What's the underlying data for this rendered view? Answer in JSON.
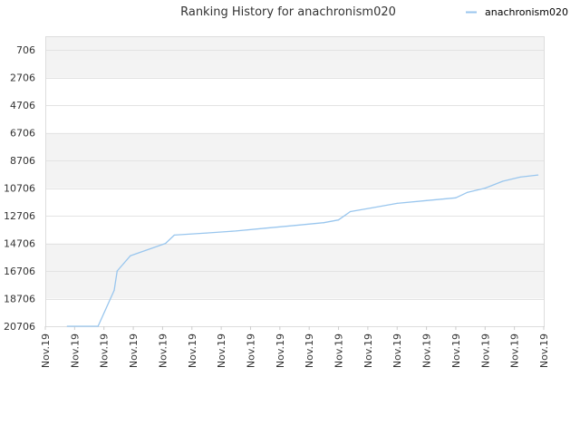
{
  "chart_data": {
    "type": "line",
    "title": "Ranking History for anachronism020",
    "xlabel": "",
    "ylabel": "",
    "y_inverted": true,
    "ylim": [
      706,
      20706
    ],
    "yticks": [
      "706",
      "2706",
      "4706",
      "6706",
      "8706",
      "10706",
      "12706",
      "14706",
      "16706",
      "18706",
      "20706"
    ],
    "xticks": [
      "Nov.19",
      "Nov.19",
      "Nov.19",
      "Nov.19",
      "Nov.19",
      "Nov.19",
      "Nov.19",
      "Nov.19",
      "Nov.19",
      "Nov.19",
      "Nov.19",
      "Nov.19",
      "Nov.19",
      "Nov.19",
      "Nov.19",
      "Nov.19",
      "Nov.19",
      "Nov.19"
    ],
    "legend": {
      "position": "top-right",
      "entries": [
        "anachronism020"
      ]
    },
    "grid": true,
    "series": [
      {
        "name": "anachronism020",
        "color": "#99c6ee",
        "x": [
          0.75,
          1.8,
          2.35,
          2.45,
          2.9,
          4.1,
          4.4,
          5.5,
          6.5,
          7.5,
          8.5,
          9.5,
          10.0,
          10.4,
          11.2,
          12.0,
          13.0,
          14.0,
          14.4,
          15.0,
          15.6,
          16.2,
          16.8
        ],
        "y": [
          20706,
          20706,
          18106,
          16706,
          15606,
          14706,
          14106,
          13956,
          13806,
          13606,
          13406,
          13206,
          13006,
          12406,
          12106,
          11806,
          11606,
          11406,
          11006,
          10706,
          10206,
          9906,
          9756
        ]
      }
    ]
  }
}
